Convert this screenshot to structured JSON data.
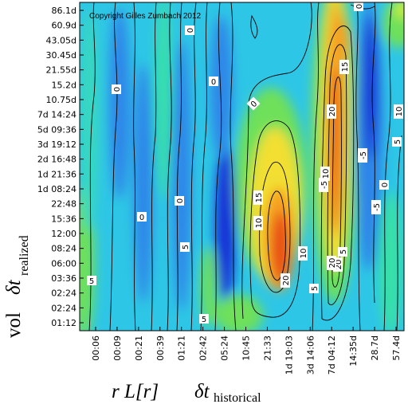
{
  "chart_data": {
    "type": "heatmap",
    "copyright": "Copyright Gilles Zumbach 2012",
    "x_tick_labels": [
      "00:06",
      "00:09",
      "00:21",
      "00:39",
      "01:21",
      "02:42",
      "05:24",
      "10:45",
      "21:33",
      "1d 19:03",
      "3d 14:06",
      "7d 04:12",
      "14:35d",
      "28.7d",
      "57.4d"
    ],
    "y_tick_labels": [
      "01:12",
      "02:24",
      "02:24",
      "03:36",
      "06:00",
      "08:24",
      "12:00",
      "15:36",
      "22:48",
      "1d 08:24",
      "1d 21:36",
      "2d 16:48",
      "3d 19:12",
      "5d 09:36",
      "7d 14:24",
      "10.75d",
      "15.2d",
      "21.55d",
      "30.45d",
      "43.05d",
      "60.9d",
      "86.1d"
    ],
    "x_label": {
      "prefix": "r L[r]",
      "symbol": "δt",
      "subscript": "historical"
    },
    "y_label": {
      "prefix": "vol",
      "symbol": "δt",
      "subscript": "realized"
    },
    "contour_labels": [
      "0",
      "0",
      "0",
      "0",
      "0",
      "0",
      "0",
      "0",
      "5",
      "5",
      "5",
      "5",
      "5",
      "5",
      "-5",
      "-5",
      "-5",
      "10",
      "10",
      "10",
      "10",
      "15",
      "15",
      "20",
      "20",
      "20",
      "20"
    ],
    "colors": {
      "scale": [
        "#1433d6",
        "#2f86e8",
        "#2ec6e6",
        "#38e0a8",
        "#6ee05a",
        "#c8ee3a",
        "#f2df30",
        "#f5a020",
        "#e84a12",
        "#c81a08"
      ],
      "contour": "#000000"
    }
  }
}
